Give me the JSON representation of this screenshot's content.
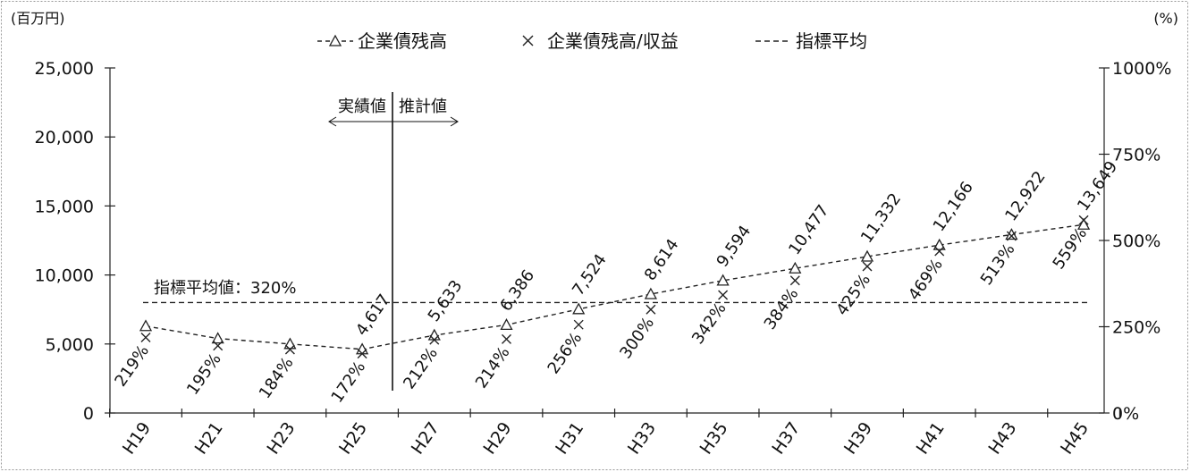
{
  "chart_data": {
    "type": "line",
    "left_unit": "(百万円)",
    "right_unit": "(%)",
    "categories": [
      "H19",
      "H21",
      "H23",
      "H25",
      "H27",
      "H29",
      "H31",
      "H33",
      "H35",
      "H37",
      "H39",
      "H41",
      "H43",
      "H45"
    ],
    "y_left_ticks": [
      "0",
      "5,000",
      "10,000",
      "15,000",
      "20,000",
      "25,000"
    ],
    "y_right_ticks": [
      "0%",
      "250%",
      "500%",
      "750%",
      "1000%"
    ],
    "ylim_left": [
      0,
      25000
    ],
    "ylim_right": [
      0,
      1000
    ],
    "series": [
      {
        "name": "企業債残高",
        "axis": "left",
        "marker": "triangle",
        "values": [
          6300,
          5400,
          5000,
          4617,
          5633,
          6386,
          7524,
          8614,
          9594,
          10477,
          11332,
          12166,
          12922,
          13649
        ],
        "labels": [
          "",
          "",
          "",
          "4,617",
          "5,633",
          "6,386",
          "7,524",
          "8,614",
          "9,594",
          "10,477",
          "11,332",
          "12,166",
          "12,922",
          "13,649"
        ]
      },
      {
        "name": "企業債残高/収益",
        "axis": "right",
        "marker": "x",
        "values": [
          219,
          195,
          184,
          172,
          212,
          214,
          256,
          300,
          342,
          384,
          425,
          469,
          513,
          559
        ],
        "labels": [
          "219%",
          "195%",
          "184%",
          "172%",
          "212%",
          "214%",
          "256%",
          "300%",
          "342%",
          "384%",
          "425%",
          "469%",
          "513%",
          "559%"
        ]
      },
      {
        "name": "指標平均",
        "axis": "right",
        "style": "dashed",
        "value": 320
      }
    ],
    "legend": [
      "企業債残高",
      "企業債残高/収益",
      "指標平均"
    ],
    "legend_position": "top-center",
    "annotations": {
      "actual": "実績値",
      "estimate": "推計値",
      "average": "指標平均値：320%"
    },
    "grid": false
  }
}
